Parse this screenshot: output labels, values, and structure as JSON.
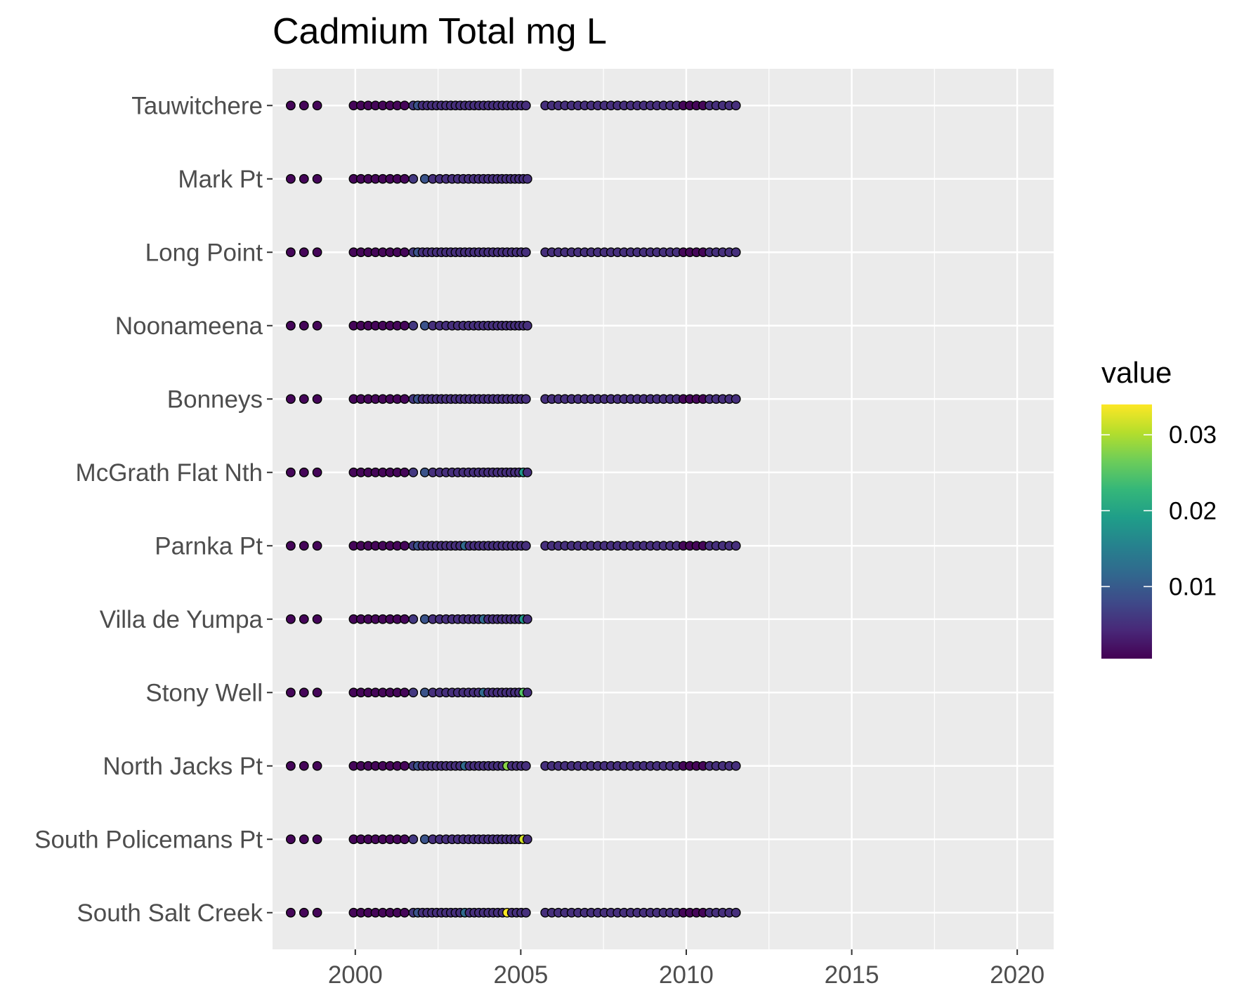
{
  "chart_data": {
    "type": "scatter",
    "title": "Cadmium Total mg L",
    "xlabel": "",
    "ylabel": "",
    "xlim": [
      1997.5,
      2021.1
    ],
    "x_ticks": [
      2000,
      2005,
      2010,
      2015,
      2020
    ],
    "x_tick_labels": [
      "2000",
      "2005",
      "2010",
      "2015",
      "2020"
    ],
    "grid": true,
    "categories": [
      "Tauwitchere",
      "Mark Pt",
      "Long Point",
      "Noonameena",
      "Bonneys",
      "McGrath Flat Nth",
      "Parnka Pt",
      "Villa de Yumpa",
      "Stony Well",
      "North Jacks Pt",
      "South Policemans Pt",
      "South Salt Creek"
    ],
    "series": [
      {
        "category": "Tauwitchere",
        "x_end": 2011.5,
        "values": [
          0.001,
          0.001,
          0.001,
          0.001,
          0.001,
          0.001,
          0.001,
          0.001,
          0.001,
          0.001,
          0.001,
          0.006,
          0.009,
          0.005,
          0.005,
          0.005,
          0.005,
          0.005,
          0.005,
          0.005,
          0.005,
          0.005,
          0.005,
          0.005,
          0.005,
          0.005,
          0.005,
          0.005,
          0.005,
          0.005,
          0.005,
          0.005,
          0.005,
          0.005,
          0.005,
          0.005,
          0.005,
          0.005,
          0.005,
          0.005,
          0.005,
          0.005,
          0.005,
          0.005,
          0.005,
          0.005,
          0.005,
          0.005,
          0.005,
          0.005,
          0.005,
          0.005,
          0.005,
          0.005,
          0.005,
          0.005,
          0.005,
          0.001,
          0.001,
          0.001,
          0.001,
          0.005,
          0.005,
          0.005,
          0.005,
          0.005
        ]
      },
      {
        "category": "Mark Pt",
        "x_end": 2005.2,
        "values": [
          0.001,
          0.001,
          0.001,
          0.001,
          0.001,
          0.001,
          0.001,
          0.001,
          0.001,
          0.001,
          0.001,
          0.006,
          0.009,
          0.005,
          0.005,
          0.005,
          0.005,
          0.005,
          0.005,
          0.005,
          0.005,
          0.005,
          0.005,
          0.005,
          0.005,
          0.005,
          0.005,
          0.005,
          0.005,
          0.005,
          0.005,
          0.005,
          0.005
        ]
      },
      {
        "category": "Long Point",
        "x_end": 2011.5,
        "values": [
          0.001,
          0.001,
          0.001,
          0.001,
          0.001,
          0.001,
          0.001,
          0.001,
          0.001,
          0.001,
          0.001,
          0.006,
          0.009,
          0.005,
          0.005,
          0.005,
          0.005,
          0.005,
          0.005,
          0.005,
          0.005,
          0.005,
          0.005,
          0.005,
          0.005,
          0.005,
          0.005,
          0.005,
          0.005,
          0.005,
          0.005,
          0.005,
          0.005,
          0.005,
          0.005,
          0.005,
          0.005,
          0.005,
          0.005,
          0.005,
          0.005,
          0.005,
          0.005,
          0.005,
          0.005,
          0.005,
          0.005,
          0.005,
          0.005,
          0.005,
          0.005,
          0.005,
          0.005,
          0.005,
          0.005,
          0.005,
          0.005,
          0.001,
          0.001,
          0.001,
          0.001,
          0.005,
          0.005,
          0.005,
          0.005,
          0.005
        ]
      },
      {
        "category": "Noonameena",
        "x_end": 2005.2,
        "values": [
          0.001,
          0.001,
          0.001,
          0.001,
          0.001,
          0.001,
          0.001,
          0.001,
          0.001,
          0.001,
          0.001,
          0.006,
          0.009,
          0.005,
          0.005,
          0.005,
          0.005,
          0.005,
          0.005,
          0.005,
          0.005,
          0.005,
          0.005,
          0.005,
          0.005,
          0.005,
          0.005,
          0.005,
          0.005,
          0.005,
          0.005,
          0.005,
          0.005
        ]
      },
      {
        "category": "Bonneys",
        "x_end": 2011.5,
        "values": [
          0.001,
          0.001,
          0.001,
          0.001,
          0.001,
          0.001,
          0.001,
          0.001,
          0.001,
          0.001,
          0.001,
          0.006,
          0.009,
          0.005,
          0.005,
          0.005,
          0.005,
          0.005,
          0.005,
          0.005,
          0.005,
          0.005,
          0.005,
          0.005,
          0.005,
          0.005,
          0.005,
          0.005,
          0.005,
          0.005,
          0.005,
          0.005,
          0.005,
          0.005,
          0.005,
          0.005,
          0.005,
          0.005,
          0.005,
          0.005,
          0.005,
          0.005,
          0.005,
          0.005,
          0.005,
          0.005,
          0.005,
          0.005,
          0.005,
          0.005,
          0.005,
          0.005,
          0.005,
          0.005,
          0.005,
          0.005,
          0.005,
          0.001,
          0.001,
          0.001,
          0.001,
          0.005,
          0.005,
          0.005,
          0.005,
          0.005
        ]
      },
      {
        "category": "McGrath Flat Nth",
        "x_end": 2005.2,
        "values": [
          0.001,
          0.001,
          0.001,
          0.001,
          0.001,
          0.001,
          0.001,
          0.001,
          0.001,
          0.001,
          0.001,
          0.006,
          0.009,
          0.005,
          0.005,
          0.005,
          0.005,
          0.005,
          0.005,
          0.005,
          0.005,
          0.005,
          0.005,
          0.005,
          0.005,
          0.005,
          0.005,
          0.005,
          0.005,
          0.005,
          0.005,
          0.018,
          0.005
        ]
      },
      {
        "category": "Parnka Pt",
        "x_end": 2011.5,
        "values": [
          0.001,
          0.001,
          0.001,
          0.001,
          0.001,
          0.001,
          0.001,
          0.001,
          0.001,
          0.001,
          0.001,
          0.006,
          0.009,
          0.005,
          0.005,
          0.005,
          0.005,
          0.005,
          0.005,
          0.005,
          0.005,
          0.005,
          0.012,
          0.005,
          0.005,
          0.005,
          0.005,
          0.005,
          0.005,
          0.005,
          0.005,
          0.005,
          0.005,
          0.005,
          0.005,
          0.005,
          0.005,
          0.005,
          0.005,
          0.005,
          0.005,
          0.005,
          0.005,
          0.005,
          0.005,
          0.005,
          0.005,
          0.005,
          0.005,
          0.005,
          0.005,
          0.005,
          0.005,
          0.005,
          0.005,
          0.005,
          0.005,
          0.001,
          0.001,
          0.001,
          0.001,
          0.005,
          0.005,
          0.005,
          0.005,
          0.005
        ]
      },
      {
        "category": "Villa de Yumpa",
        "x_end": 2005.2,
        "values": [
          0.001,
          0.001,
          0.001,
          0.001,
          0.001,
          0.001,
          0.001,
          0.001,
          0.001,
          0.001,
          0.001,
          0.006,
          0.009,
          0.005,
          0.005,
          0.005,
          0.005,
          0.005,
          0.005,
          0.005,
          0.005,
          0.005,
          0.012,
          0.005,
          0.005,
          0.005,
          0.005,
          0.005,
          0.005,
          0.005,
          0.005,
          0.018,
          0.005
        ]
      },
      {
        "category": "Stony Well",
        "x_end": 2005.2,
        "values": [
          0.001,
          0.001,
          0.001,
          0.001,
          0.001,
          0.001,
          0.001,
          0.001,
          0.001,
          0.001,
          0.001,
          0.006,
          0.009,
          0.005,
          0.005,
          0.005,
          0.005,
          0.005,
          0.005,
          0.005,
          0.005,
          0.005,
          0.012,
          0.005,
          0.005,
          0.005,
          0.005,
          0.005,
          0.005,
          0.005,
          0.005,
          0.025,
          0.005
        ]
      },
      {
        "category": "North Jacks Pt",
        "x_end": 2011.5,
        "values": [
          0.001,
          0.001,
          0.001,
          0.001,
          0.001,
          0.001,
          0.001,
          0.001,
          0.001,
          0.001,
          0.001,
          0.006,
          0.009,
          0.005,
          0.005,
          0.005,
          0.005,
          0.005,
          0.005,
          0.005,
          0.005,
          0.005,
          0.012,
          0.005,
          0.005,
          0.005,
          0.005,
          0.005,
          0.005,
          0.005,
          0.005,
          0.028,
          0.005,
          0.005,
          0.005,
          0.005,
          0.005,
          0.005,
          0.005,
          0.005,
          0.005,
          0.005,
          0.005,
          0.005,
          0.005,
          0.005,
          0.005,
          0.005,
          0.005,
          0.005,
          0.005,
          0.005,
          0.005,
          0.005,
          0.005,
          0.005,
          0.005,
          0.001,
          0.001,
          0.001,
          0.001,
          0.005,
          0.005,
          0.005,
          0.005,
          0.005
        ]
      },
      {
        "category": "South Policemans Pt",
        "x_end": 2005.2,
        "values": [
          0.001,
          0.001,
          0.001,
          0.001,
          0.001,
          0.001,
          0.001,
          0.001,
          0.001,
          0.001,
          0.001,
          0.006,
          0.009,
          0.005,
          0.005,
          0.005,
          0.005,
          0.005,
          0.005,
          0.005,
          0.005,
          0.005,
          0.005,
          0.005,
          0.005,
          0.005,
          0.005,
          0.005,
          0.005,
          0.005,
          0.005,
          0.032,
          0.005
        ]
      },
      {
        "category": "South Salt Creek",
        "x_end": 2011.5,
        "values": [
          0.001,
          0.001,
          0.001,
          0.001,
          0.001,
          0.001,
          0.001,
          0.001,
          0.001,
          0.001,
          0.001,
          0.006,
          0.009,
          0.005,
          0.005,
          0.005,
          0.005,
          0.005,
          0.005,
          0.005,
          0.005,
          0.005,
          0.012,
          0.005,
          0.005,
          0.005,
          0.005,
          0.005,
          0.005,
          0.005,
          0.005,
          0.034,
          0.005,
          0.005,
          0.005,
          0.005,
          0.005,
          0.005,
          0.005,
          0.005,
          0.005,
          0.005,
          0.005,
          0.005,
          0.005,
          0.005,
          0.005,
          0.005,
          0.005,
          0.005,
          0.005,
          0.005,
          0.005,
          0.005,
          0.005,
          0.005,
          0.005,
          0.001,
          0.001,
          0.001,
          0.001,
          0.005,
          0.005,
          0.005,
          0.005,
          0.005
        ]
      }
    ],
    "legend": {
      "title": "value",
      "position": "right",
      "min": 0.0005,
      "max": 0.034,
      "ticks": [
        0.01,
        0.02,
        0.03
      ],
      "tick_labels": [
        "0.01",
        "0.02",
        "0.03"
      ],
      "colors": [
        "#440154",
        "#482878",
        "#3E4A89",
        "#31688E",
        "#26828E",
        "#1F9E89",
        "#35B779",
        "#6DCD59",
        "#B4DE2C",
        "#FDE725"
      ]
    },
    "colors": {
      "panel": "#EBEBEB",
      "grid": "#FFFFFF",
      "point_outline": "#000000"
    }
  }
}
